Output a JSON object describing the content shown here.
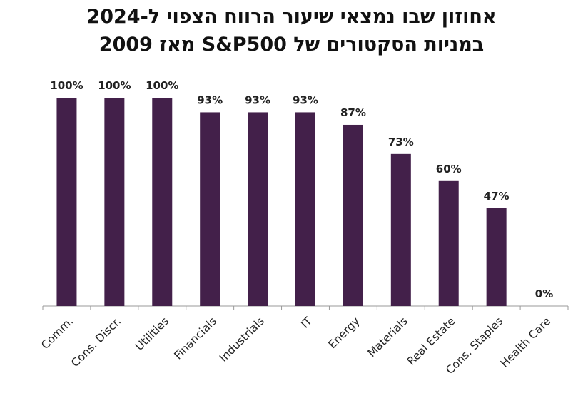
{
  "chart_data": {
    "type": "bar",
    "title_line1": "אחוזון שבו נמצאי שיעור הרווח הצפוי ל-2024",
    "title_line2": "במניות הסקטורים של S&P500 מאז 2009",
    "categories": [
      "Comm.",
      "Cons. Discr.",
      "Utilities",
      "Financials",
      "Industrials",
      "IT",
      "Energy",
      "Materials",
      "Real Estate",
      "Cons. Staples",
      "Health Care"
    ],
    "values": [
      100,
      100,
      100,
      93,
      93,
      93,
      87,
      73,
      60,
      47,
      0
    ],
    "value_labels": [
      "100%",
      "100%",
      "100%",
      "93%",
      "93%",
      "93%",
      "87%",
      "73%",
      "60%",
      "47%",
      "0%"
    ],
    "ylim": [
      0,
      100
    ],
    "grid": false,
    "bar_color": "#43204a"
  }
}
